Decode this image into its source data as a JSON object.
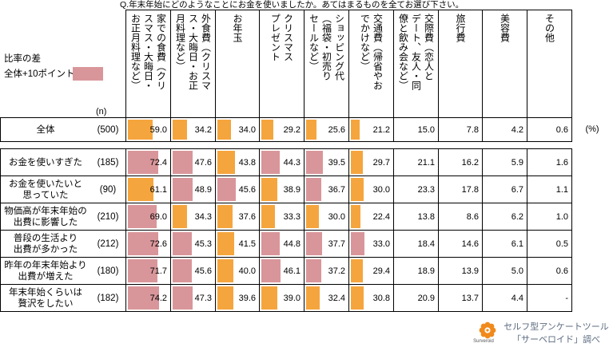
{
  "title": "Q.年末年始にどのようなことにお金を使いましたか。あてはまるものを全てお選び下さい。",
  "legend": {
    "label_1": "比率の差",
    "label_2": "全体+10ポイント"
  },
  "n_header": "(n)",
  "unit": "(%)",
  "colors": {
    "bar": "#f5a53d",
    "highlight": "#d9969a",
    "border": "#000000",
    "footer_text": "#5d6c80",
    "logo": "#f08a1c"
  },
  "chart_data": {
    "type": "table",
    "columns": [
      {
        "label": "家での食費（クリ\nスマス・大晦日・\nお正月料理など）",
        "show_bars": true
      },
      {
        "label": "外食費（クリスマ\nス・大晦日・お正\n月料理など）",
        "show_bars": true
      },
      {
        "label": "お年玉",
        "show_bars": true
      },
      {
        "label": "クリスマス\nプレゼント",
        "show_bars": true
      },
      {
        "label": "ショッピング代\n（福袋・初売り\nセールなど）",
        "show_bars": true
      },
      {
        "label": "交通費（帰省やお\nでかけなど）",
        "show_bars": true
      },
      {
        "label": "交際費（恋人と\nデート、友人・同\n僚と飲み会など）",
        "show_bars": false
      },
      {
        "label": "旅行費",
        "show_bars": false
      },
      {
        "label": "美容費",
        "show_bars": false
      },
      {
        "label": "その他",
        "show_bars": false
      }
    ],
    "total": {
      "label": "全体",
      "n": "(500)",
      "values": [
        "59.0",
        "34.2",
        "34.0",
        "29.2",
        "25.6",
        "21.2",
        "15.0",
        "7.8",
        "4.2",
        "0.6"
      ]
    },
    "rows": [
      {
        "label": "お金を使いすぎた",
        "n": "(185)",
        "values": [
          "72.4",
          "47.6",
          "43.8",
          "44.3",
          "39.5",
          "29.7",
          "21.1",
          "16.2",
          "5.9",
          "1.6"
        ]
      },
      {
        "label": "お金を使いたいと\n思っていた",
        "n": "(90)",
        "values": [
          "61.1",
          "48.9",
          "45.6",
          "38.9",
          "36.7",
          "30.0",
          "23.3",
          "17.8",
          "6.7",
          "1.1"
        ]
      },
      {
        "label": "物価高が年末年始の\n出費に影響した",
        "n": "(210)",
        "values": [
          "69.0",
          "34.3",
          "37.6",
          "33.3",
          "30.0",
          "22.4",
          "13.8",
          "8.6",
          "6.2",
          "1.0"
        ]
      },
      {
        "label": "普段の生活より\n出費が多かった",
        "n": "(212)",
        "values": [
          "72.6",
          "45.3",
          "41.5",
          "44.8",
          "37.7",
          "33.0",
          "18.4",
          "14.6",
          "6.1",
          "0.5"
        ]
      },
      {
        "label": "昨年の年末年始より\n出費が増えた",
        "n": "(180)",
        "values": [
          "71.7",
          "45.6",
          "40.0",
          "46.1",
          "37.2",
          "29.4",
          "18.9",
          "13.9",
          "5.0",
          "0.6"
        ]
      },
      {
        "label": "年末年始くらいは\n贅沢をしたい",
        "n": "(182)",
        "values": [
          "74.2",
          "47.3",
          "39.6",
          "39.0",
          "32.4",
          "30.8",
          "20.9",
          "13.7",
          "4.4",
          "-"
        ]
      }
    ]
  },
  "footer": {
    "logo_text": "Surveroid",
    "line_1": "セルフ型アンケートツール",
    "line_2": "「サーベロイド」調べ"
  }
}
